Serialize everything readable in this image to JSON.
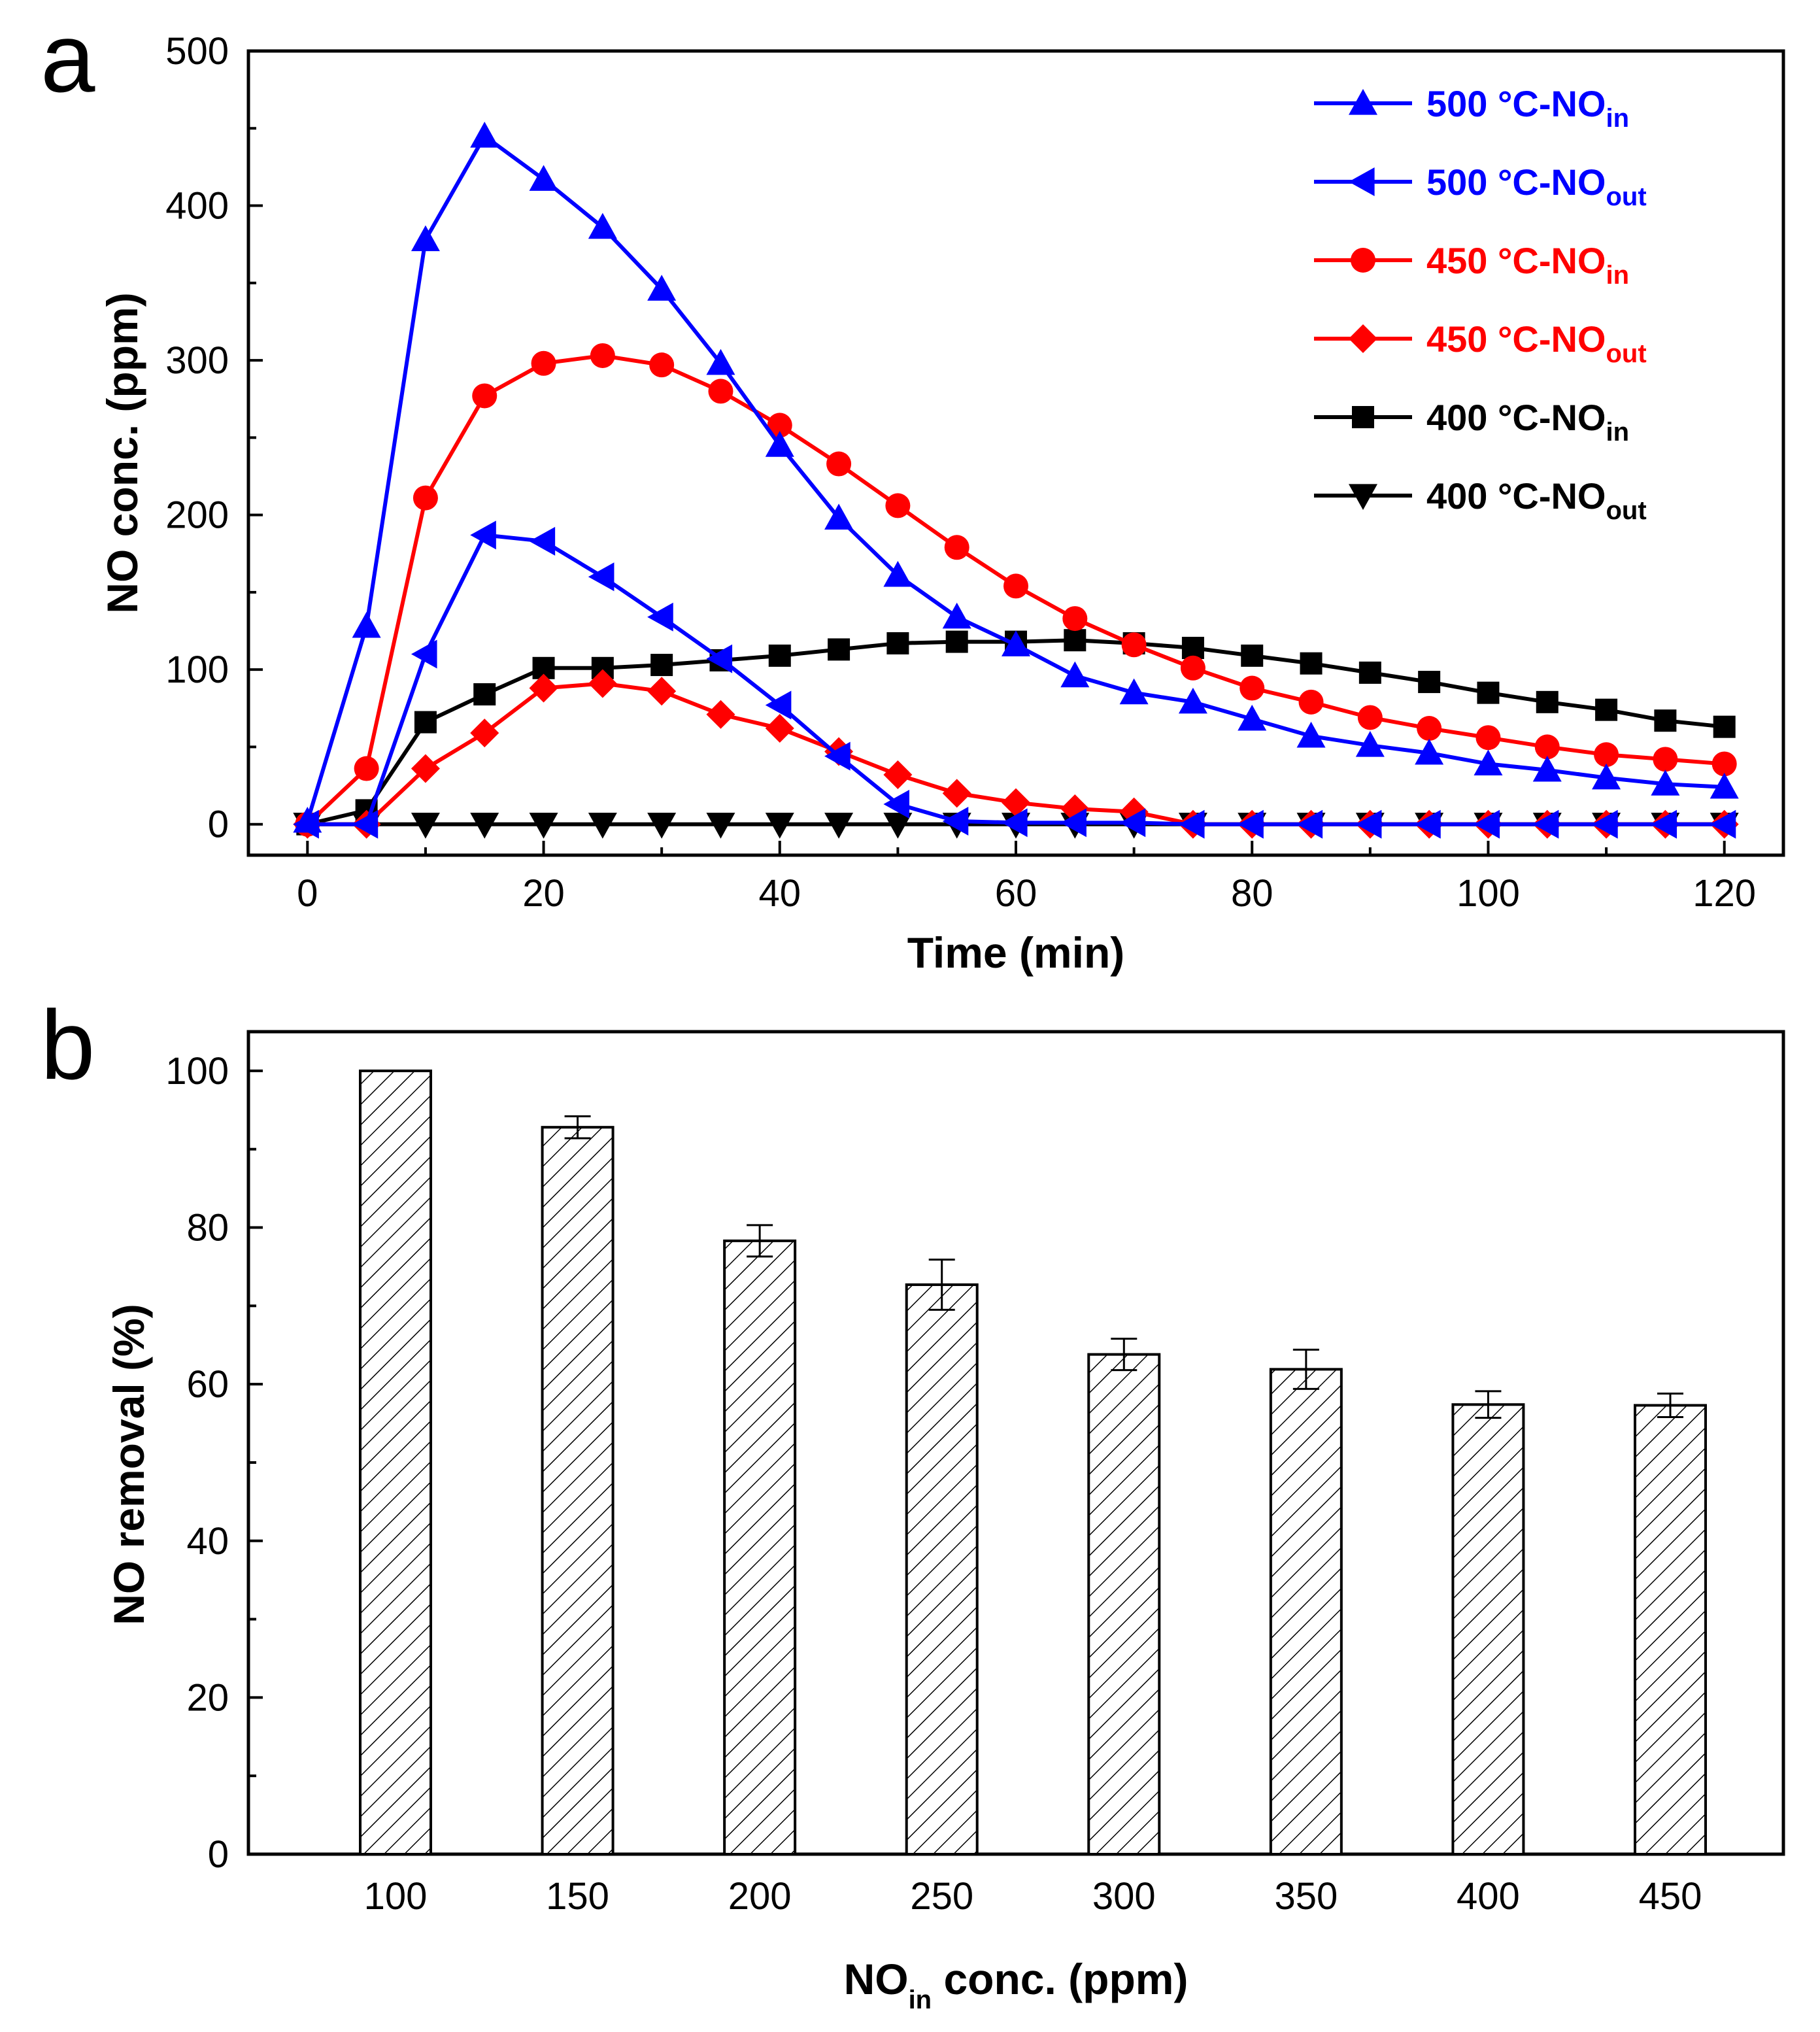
{
  "chart_data": [
    {
      "panel": "a",
      "type": "line",
      "xlabel": "Time (min)",
      "ylabel": "NO conc. (ppm)",
      "xlim": [
        -5,
        125
      ],
      "ylim": [
        -20,
        500
      ],
      "xticks": [
        0,
        20,
        40,
        60,
        80,
        100,
        120
      ],
      "yticks": [
        0,
        100,
        200,
        300,
        400,
        500
      ],
      "legend_position": "top-right",
      "x": [
        0,
        5,
        10,
        15,
        20,
        25,
        30,
        35,
        40,
        45,
        50,
        55,
        60,
        65,
        70,
        75,
        80,
        85,
        90,
        95,
        100,
        105,
        110,
        115,
        120
      ],
      "series": [
        {
          "name": "500 °C-NO_in",
          "label_main": "500 °C-NO",
          "label_sub": "in",
          "color": "#0000ff",
          "marker": "triangle-up",
          "values": [
            2,
            128,
            378,
            445,
            417,
            386,
            346,
            298,
            245,
            198,
            161,
            134,
            116,
            96,
            85,
            79,
            68,
            57,
            51,
            46,
            39,
            35,
            30,
            26,
            24
          ]
        },
        {
          "name": "500 °C-NO_out",
          "label_main": "500 °C-NO",
          "label_sub": "out",
          "color": "#0000ff",
          "marker": "triangle-left",
          "values": [
            0,
            0,
            110,
            187,
            183,
            160,
            134,
            107,
            77,
            44,
            13,
            2,
            1,
            1,
            1,
            0,
            0,
            0,
            0,
            0,
            0,
            0,
            0,
            0,
            0
          ]
        },
        {
          "name": "450 °C-NO_in",
          "label_main": "450 °C-NO",
          "label_sub": "in",
          "color": "#ff0000",
          "marker": "circle",
          "values": [
            0,
            36,
            211,
            277,
            298,
            303,
            297,
            280,
            258,
            233,
            206,
            179,
            154,
            133,
            116,
            101,
            88,
            79,
            69,
            62,
            56,
            50,
            45,
            42,
            39
          ]
        },
        {
          "name": "450 °C-NO_out",
          "label_main": "450 °C-NO",
          "label_sub": "out",
          "color": "#ff0000",
          "marker": "diamond",
          "values": [
            0,
            0,
            36,
            59,
            88,
            91,
            86,
            71,
            62,
            47,
            32,
            20,
            14,
            10,
            8,
            0,
            0,
            0,
            0,
            0,
            0,
            0,
            0,
            0,
            0
          ]
        },
        {
          "name": "400 °C-NO_in",
          "label_main": "400 °C-NO",
          "label_sub": "in",
          "color": "#000000",
          "marker": "square",
          "values": [
            0,
            9,
            66,
            84,
            101,
            101,
            103,
            106,
            109,
            113,
            117,
            118,
            118,
            119,
            117,
            114,
            109,
            104,
            98,
            92,
            85,
            79,
            74,
            67,
            63
          ]
        },
        {
          "name": "400 °C-NO_out",
          "label_main": "400 °C-NO",
          "label_sub": "out",
          "color": "#000000",
          "marker": "triangle-down",
          "values": [
            0,
            0,
            0,
            0,
            0,
            0,
            0,
            0,
            0,
            0,
            0,
            0,
            0,
            0,
            0,
            0,
            0,
            0,
            0,
            0,
            0,
            0,
            0,
            0,
            0
          ]
        }
      ]
    },
    {
      "panel": "b",
      "type": "bar",
      "xlabel_main": "NO",
      "xlabel_sub": "in",
      "xlabel_rest": " conc. (ppm)",
      "ylabel": "NO removal (%)",
      "ylim": [
        0,
        105
      ],
      "yticks": [
        0,
        20,
        40,
        60,
        80,
        100
      ],
      "categories": [
        "100",
        "150",
        "200",
        "250",
        "300",
        "350",
        "400",
        "450"
      ],
      "values": [
        100,
        92.8,
        78.3,
        72.7,
        63.8,
        61.9,
        57.4,
        57.3
      ],
      "errors": [
        0,
        1.4,
        2.0,
        3.2,
        2.0,
        2.5,
        1.7,
        1.5
      ],
      "bar_pattern": "diagonal-hatch"
    }
  ]
}
